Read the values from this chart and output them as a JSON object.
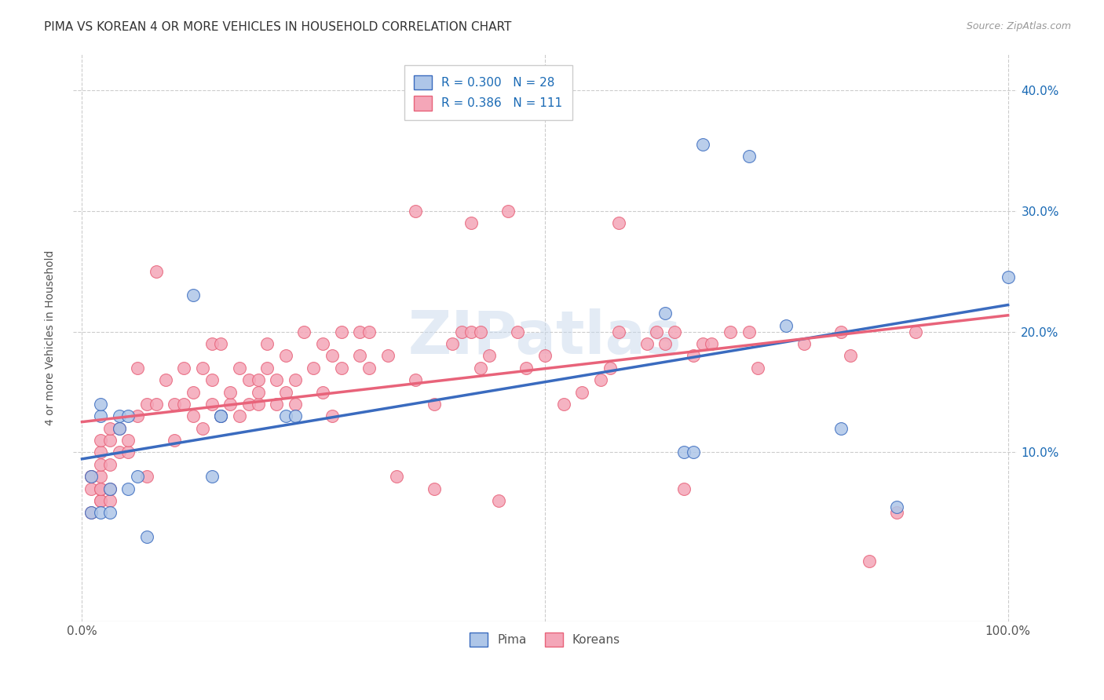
{
  "title": "PIMA VS KOREAN 4 OR MORE VEHICLES IN HOUSEHOLD CORRELATION CHART",
  "source": "Source: ZipAtlas.com",
  "ylabel": "4 or more Vehicles in Household",
  "watermark": "ZIPatlas",
  "legend_labels": [
    "Pima",
    "Koreans"
  ],
  "pima_R": 0.3,
  "pima_N": 28,
  "korean_R": 0.386,
  "korean_N": 111,
  "pima_color": "#aec6e8",
  "korean_color": "#f4a6b8",
  "pima_line_color": "#3a6bbf",
  "korean_line_color": "#e8637a",
  "xlim": [
    -0.01,
    1.01
  ],
  "ylim": [
    -0.04,
    0.43
  ],
  "ytick_vals": [
    0.1,
    0.2,
    0.3,
    0.4
  ],
  "xtick_left": 0.0,
  "xtick_right": 1.0,
  "background_color": "#ffffff",
  "grid_color": "#cccccc",
  "title_fontsize": 11,
  "axis_label_fontsize": 10,
  "tick_fontsize": 11,
  "legend_fontsize": 11,
  "source_fontsize": 9,
  "pima_x": [
    0.01,
    0.01,
    0.02,
    0.02,
    0.02,
    0.03,
    0.03,
    0.04,
    0.04,
    0.05,
    0.05,
    0.06,
    0.07,
    0.12,
    0.14,
    0.15,
    0.15,
    0.22,
    0.23,
    0.63,
    0.65,
    0.66,
    0.67,
    0.72,
    0.76,
    0.82,
    0.88,
    1.0
  ],
  "pima_y": [
    0.05,
    0.08,
    0.13,
    0.14,
    0.05,
    0.05,
    0.07,
    0.12,
    0.13,
    0.13,
    0.07,
    0.08,
    0.03,
    0.23,
    0.08,
    0.13,
    0.13,
    0.13,
    0.13,
    0.215,
    0.1,
    0.1,
    0.355,
    0.345,
    0.205,
    0.12,
    0.055,
    0.245
  ],
  "korean_x": [
    0.01,
    0.01,
    0.01,
    0.01,
    0.02,
    0.02,
    0.02,
    0.02,
    0.02,
    0.02,
    0.02,
    0.02,
    0.03,
    0.03,
    0.03,
    0.03,
    0.03,
    0.04,
    0.04,
    0.05,
    0.05,
    0.06,
    0.06,
    0.07,
    0.07,
    0.08,
    0.08,
    0.09,
    0.1,
    0.1,
    0.11,
    0.11,
    0.12,
    0.12,
    0.13,
    0.13,
    0.14,
    0.14,
    0.14,
    0.15,
    0.15,
    0.16,
    0.16,
    0.17,
    0.17,
    0.18,
    0.18,
    0.19,
    0.19,
    0.19,
    0.2,
    0.2,
    0.21,
    0.21,
    0.22,
    0.22,
    0.23,
    0.23,
    0.24,
    0.25,
    0.26,
    0.26,
    0.27,
    0.27,
    0.28,
    0.28,
    0.3,
    0.3,
    0.31,
    0.31,
    0.33,
    0.34,
    0.36,
    0.36,
    0.38,
    0.38,
    0.4,
    0.41,
    0.42,
    0.42,
    0.43,
    0.43,
    0.44,
    0.45,
    0.46,
    0.47,
    0.48,
    0.5,
    0.52,
    0.54,
    0.56,
    0.57,
    0.58,
    0.58,
    0.61,
    0.62,
    0.63,
    0.64,
    0.65,
    0.66,
    0.67,
    0.68,
    0.7,
    0.72,
    0.73,
    0.78,
    0.82,
    0.83,
    0.85,
    0.88,
    0.9
  ],
  "korean_y": [
    0.05,
    0.07,
    0.08,
    0.08,
    0.06,
    0.06,
    0.07,
    0.07,
    0.08,
    0.09,
    0.1,
    0.11,
    0.06,
    0.07,
    0.09,
    0.11,
    0.12,
    0.1,
    0.12,
    0.1,
    0.11,
    0.13,
    0.17,
    0.08,
    0.14,
    0.25,
    0.14,
    0.16,
    0.11,
    0.14,
    0.14,
    0.17,
    0.13,
    0.15,
    0.12,
    0.17,
    0.14,
    0.16,
    0.19,
    0.13,
    0.19,
    0.14,
    0.15,
    0.13,
    0.17,
    0.14,
    0.16,
    0.14,
    0.15,
    0.16,
    0.17,
    0.19,
    0.14,
    0.16,
    0.15,
    0.18,
    0.14,
    0.16,
    0.2,
    0.17,
    0.15,
    0.19,
    0.13,
    0.18,
    0.17,
    0.2,
    0.18,
    0.2,
    0.17,
    0.2,
    0.18,
    0.08,
    0.16,
    0.3,
    0.07,
    0.14,
    0.19,
    0.2,
    0.2,
    0.29,
    0.17,
    0.2,
    0.18,
    0.06,
    0.3,
    0.2,
    0.17,
    0.18,
    0.14,
    0.15,
    0.16,
    0.17,
    0.2,
    0.29,
    0.19,
    0.2,
    0.19,
    0.2,
    0.07,
    0.18,
    0.19,
    0.19,
    0.2,
    0.2,
    0.17,
    0.19,
    0.2,
    0.18,
    0.01,
    0.05,
    0.2
  ]
}
